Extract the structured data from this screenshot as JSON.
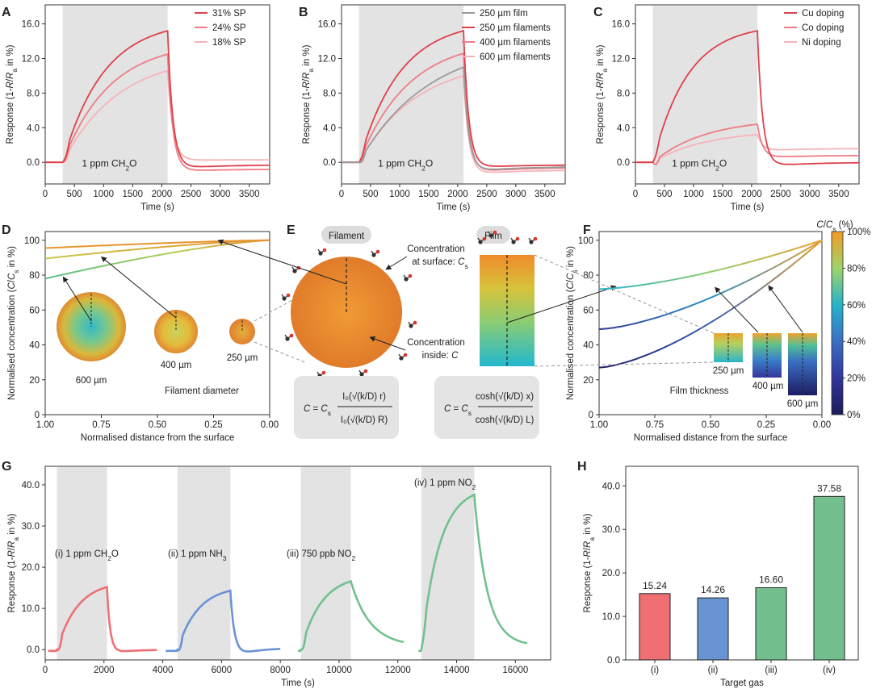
{
  "figure": {
    "panel_letters": [
      "A",
      "B",
      "C",
      "D",
      "E",
      "F",
      "G",
      "H"
    ]
  },
  "chart_data": [
    {
      "panel": "A",
      "type": "line",
      "xlabel": "Time (s)",
      "ylabel": "Response (1-R/R",
      "ylabel_sub": "a",
      "ylabel_end": " in %)",
      "xlim": [
        0,
        3850
      ],
      "ylim": [
        -2.5,
        18.2
      ],
      "xticks": [
        0,
        500,
        1000,
        1500,
        2000,
        2500,
        3000,
        3500
      ],
      "yticks": [
        0,
        4,
        8,
        12,
        16
      ],
      "ytick_labels": [
        "0.0",
        "4.0",
        "8.0",
        "12.0",
        "16.0"
      ],
      "exposure": [
        300,
        2100
      ],
      "annotation": "1 ppm CH",
      "annotation_sub": "2",
      "annotation_end": "O",
      "series": [
        {
          "name": "31% SP",
          "color": "#e0404a",
          "peak": 15.2,
          "tau_on": 700,
          "undershoot": -0.8,
          "end": -0.3
        },
        {
          "name": "24% SP",
          "color": "#ef7c84",
          "peak": 12.5,
          "tau_on": 800,
          "undershoot": -1.1,
          "end": -0.8
        },
        {
          "name": "18% SP",
          "color": "#f6b3b8",
          "peak": 10.6,
          "tau_on": 950,
          "undershoot": 0.2,
          "end": 0.3
        }
      ]
    },
    {
      "panel": "B",
      "type": "line",
      "xlabel": "Time (s)",
      "ylabel": "Response (1-R/R",
      "ylabel_sub": "a",
      "ylabel_end": " in %)",
      "xlim": [
        0,
        3850
      ],
      "ylim": [
        -2.5,
        18.2
      ],
      "xticks": [
        0,
        500,
        1000,
        1500,
        2000,
        2500,
        3000,
        3500
      ],
      "yticks": [
        0,
        4,
        8,
        12,
        16
      ],
      "ytick_labels": [
        "0.0",
        "4.0",
        "8.0",
        "12.0",
        "16.0"
      ],
      "exposure": [
        300,
        2100
      ],
      "annotation": "1 ppm CH",
      "annotation_sub": "2",
      "annotation_end": "O",
      "series": [
        {
          "name": "250 µm film",
          "color": "#9a9a9a",
          "peak": 11.0,
          "tau_on": 1200,
          "undershoot": -1.2,
          "end": -0.5
        },
        {
          "name": "250 µm filaments",
          "color": "#e0404a",
          "peak": 15.2,
          "tau_on": 700,
          "undershoot": -0.7,
          "end": -0.3
        },
        {
          "name": "400 µm filaments",
          "color": "#ef7c84",
          "peak": 12.6,
          "tau_on": 850,
          "undershoot": -1.3,
          "end": -0.6
        },
        {
          "name": "600 µm filaments",
          "color": "#f6b3b8",
          "peak": 10.0,
          "tau_on": 1000,
          "undershoot": -1.5,
          "end": -0.9
        }
      ]
    },
    {
      "panel": "C",
      "type": "line",
      "xlabel": "Time (s)",
      "ylabel": "Response (1-R/R",
      "ylabel_sub": "a",
      "ylabel_end": " in %)",
      "xlim": [
        0,
        3850
      ],
      "ylim": [
        -2.5,
        18.2
      ],
      "xticks": [
        0,
        500,
        1000,
        1500,
        2000,
        2500,
        3000,
        3500
      ],
      "yticks": [
        0,
        4,
        8,
        12,
        16
      ],
      "ytick_labels": [
        "0.0",
        "4.0",
        "8.0",
        "12.0",
        "16.0"
      ],
      "exposure": [
        300,
        2100
      ],
      "annotation": "1 ppm CH",
      "annotation_sub": "2",
      "annotation_end": "O",
      "series": [
        {
          "name": "Cu doping",
          "color": "#e0404a",
          "peak": 15.2,
          "tau_on": 600,
          "undershoot": -0.6,
          "end": 0.0
        },
        {
          "name": "Co doping",
          "color": "#ef7c84",
          "peak": 4.4,
          "tau_on": 900,
          "undershoot": 0.5,
          "end": 0.8
        },
        {
          "name": "Ni doping",
          "color": "#f6b3b8",
          "peak": 3.2,
          "tau_on": 900,
          "undershoot": 1.3,
          "end": 1.6
        }
      ]
    },
    {
      "panel": "D",
      "type": "line",
      "xlabel": "Normalised distance from the surface",
      "ylabel": "Normalised concentration (C/C",
      "ylabel_sub": "s",
      "ylabel_end": " in %)",
      "xlim": [
        1.0,
        0.0
      ],
      "ylim": [
        0,
        105
      ],
      "xticks": [
        1.0,
        0.75,
        0.5,
        0.25,
        0.0
      ],
      "xtick_labels": [
        "1.00",
        "0.75",
        "0.50",
        "0.25",
        "0.00"
      ],
      "yticks": [
        0,
        20,
        40,
        60,
        80,
        100
      ],
      "series": [
        {
          "name": "250 µm",
          "start": 95.5
        },
        {
          "name": "400 µm",
          "start": 89.5
        },
        {
          "name": "600 µm",
          "start": 78.0
        }
      ],
      "legend_title": "Filament diameter",
      "cross_sections": [
        "600 µm",
        "400  µm",
        "250 µm"
      ]
    },
    {
      "panel": "E",
      "type": "diagram",
      "filament_label": "Filament",
      "film_label": "Film",
      "surface_label_1": "Concentration",
      "surface_label_2": "at surface: C",
      "surface_label_sub": "s",
      "inside_label_1": "Concentration",
      "inside_label_2": "inside: C",
      "equation_filament": {
        "lhs": "C = C",
        "sub": "s",
        "num": "I₀(√(k/D) r)",
        "den": "I₀(√(k/D) R)"
      },
      "equation_film": {
        "lhs": "C = C",
        "sub": "s",
        "num": "cosh(√(k/D) x)",
        "den": "cosh(√(k/D) L)"
      }
    },
    {
      "panel": "F",
      "type": "line",
      "xlabel": "Normalised distance from the surface",
      "ylabel": "Normalised concentration (C/C",
      "ylabel_sub": "s",
      "ylabel_end": " in %)",
      "xlim": [
        1.0,
        0.0
      ],
      "ylim": [
        0,
        105
      ],
      "xticks": [
        1.0,
        0.75,
        0.5,
        0.25,
        0.0
      ],
      "xtick_labels": [
        "1.00",
        "0.75",
        "0.50",
        "0.25",
        "0.00"
      ],
      "yticks": [
        0,
        20,
        40,
        60,
        80,
        100
      ],
      "series": [
        {
          "name": "250 µm",
          "start": 72.0
        },
        {
          "name": "400 µm",
          "start": 49.0
        },
        {
          "name": "600 µm",
          "start": 27.0
        }
      ],
      "legend_title": "Film thickness",
      "cross_sections": [
        "250 µm",
        "400 µm",
        "600 µm"
      ],
      "colorbar_title": "C/C",
      "colorbar_title_sub": "s",
      "colorbar_title_end": " (%)",
      "colorbar_ticks": [
        "0%",
        "20%",
        "40%",
        "60%",
        "80%",
        "100%"
      ]
    },
    {
      "panel": "G",
      "type": "line",
      "xlabel": "Time (s)",
      "ylabel": "Response (1-R/R",
      "ylabel_sub": "a",
      "ylabel_end": " in %)",
      "xlim": [
        0,
        17200
      ],
      "ylim": [
        -2.5,
        44.5
      ],
      "xticks": [
        0,
        2000,
        4000,
        6000,
        8000,
        10000,
        12000,
        14000,
        16000
      ],
      "yticks": [
        0,
        10,
        20,
        30,
        40
      ],
      "ytick_labels": [
        "0.0",
        "10.0",
        "20.0",
        "30.0",
        "40.0"
      ],
      "segments": [
        {
          "label": "(i) 1 ppm CH",
          "label_sub": "2",
          "label_end": "O",
          "color": "#ef6f74",
          "t0": 100,
          "exp": [
            400,
            2100
          ],
          "t_end": 3800,
          "peak": 15.2,
          "tau_on": 700,
          "undershoot": -1.0,
          "end": 0.0,
          "tau_off": 110
        },
        {
          "label": "(ii) 1 ppm NH",
          "label_sub": "3",
          "label_end": "",
          "color": "#6a93d4",
          "t0": 4100,
          "exp": [
            4500,
            6300
          ],
          "t_end": 8000,
          "peak": 14.3,
          "tau_on": 700,
          "undershoot": -2.1,
          "end": 0.4,
          "tau_off": 140
        },
        {
          "label": "(iii) 750 ppb NO",
          "label_sub": "2",
          "label_end": "",
          "color": "#73c08e",
          "t0": 8600,
          "exp": [
            8700,
            10400
          ],
          "t_end": 12200,
          "peak": 16.6,
          "tau_on": 700,
          "undershoot": 3.5,
          "end": 0.8,
          "tau_off": 650
        },
        {
          "label": "(iv) 1 ppm NO",
          "label_sub": "2",
          "label_end": "",
          "color": "#73c08e",
          "t0": 12700,
          "exp": [
            12800,
            14600
          ],
          "t_end": 16400,
          "peak": 37.6,
          "tau_on": 600,
          "undershoot": 4.5,
          "end": 0.8,
          "tau_off": 420
        }
      ]
    },
    {
      "panel": "H",
      "type": "bar",
      "xlabel": "Target gas",
      "ylabel": "Response (1-R/R",
      "ylabel_sub": "a",
      "ylabel_end": " in %)",
      "ylim": [
        0,
        44.5
      ],
      "yticks": [
        0,
        10,
        20,
        30,
        40
      ],
      "ytick_labels": [
        "0.0",
        "10.0",
        "20.0",
        "30.0",
        "40.0"
      ],
      "categories": [
        "(i)",
        "(ii)",
        "(iii)",
        "(iv)"
      ],
      "values": [
        15.24,
        14.26,
        16.6,
        37.58
      ],
      "value_labels": [
        "15.24",
        "14.26",
        "16.60",
        "37.58"
      ],
      "colors": [
        "#ef6f74",
        "#6a93d4",
        "#73c08e",
        "#73c08e"
      ]
    }
  ]
}
